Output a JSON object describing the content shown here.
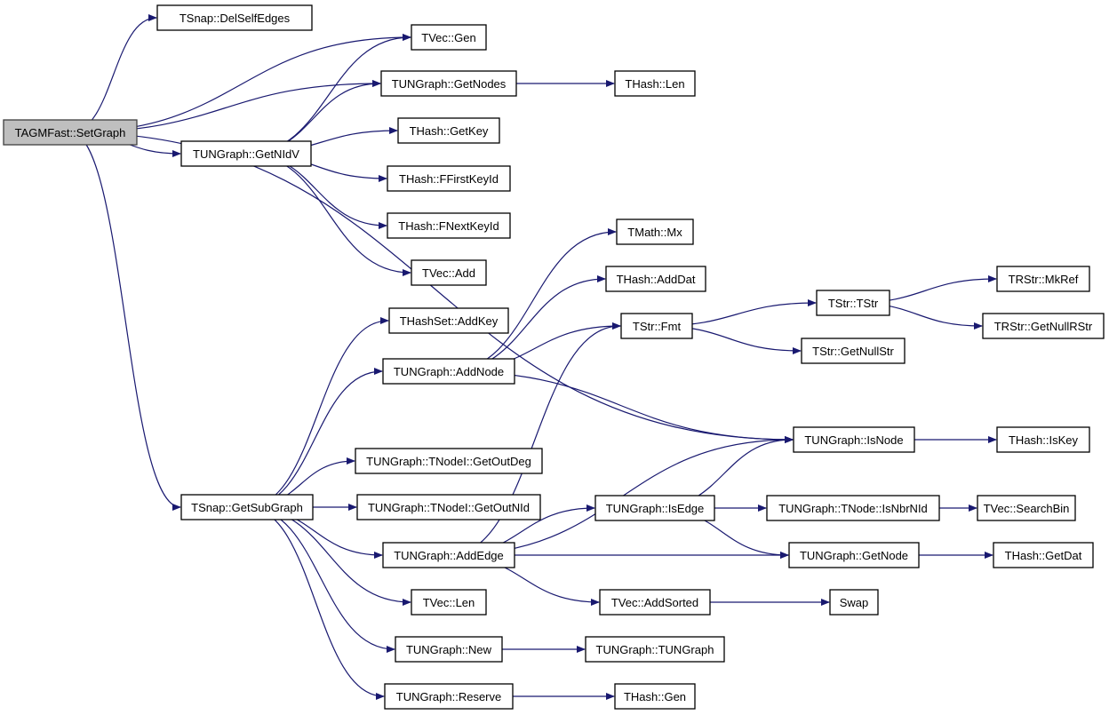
{
  "colors": {
    "edge": "#191970",
    "root_fill": "#bfbfbf",
    "node_fill": "#ffffff"
  },
  "nodes": [
    {
      "id": "setgraph",
      "label": "TAGMFast::SetGraph",
      "root": true
    },
    {
      "id": "delselfedges",
      "label": "TSnap::DelSelfEdges"
    },
    {
      "id": "tvecgen",
      "label": "TVec::Gen"
    },
    {
      "id": "getnodes",
      "label": "TUNGraph::GetNodes"
    },
    {
      "id": "thashlen",
      "label": "THash::Len"
    },
    {
      "id": "getnidv",
      "label": "TUNGraph::GetNIdV"
    },
    {
      "id": "getkey",
      "label": "THash::GetKey"
    },
    {
      "id": "ffirstkeyid",
      "label": "THash::FFirstKeyId"
    },
    {
      "id": "fnextkeyid",
      "label": "THash::FNextKeyId"
    },
    {
      "id": "tvecadd",
      "label": "TVec::Add"
    },
    {
      "id": "mx",
      "label": "TMath::Mx"
    },
    {
      "id": "adddat",
      "label": "THash::AddDat"
    },
    {
      "id": "addkey",
      "label": "THashSet::AddKey"
    },
    {
      "id": "fmt",
      "label": "TStr::Fmt"
    },
    {
      "id": "tstr",
      "label": "TStr::TStr"
    },
    {
      "id": "mkref",
      "label": "TRStr::MkRef"
    },
    {
      "id": "getnullrstr",
      "label": "TRStr::GetNullRStr"
    },
    {
      "id": "addnode",
      "label": "TUNGraph::AddNode"
    },
    {
      "id": "getnullstr",
      "label": "TStr::GetNullStr"
    },
    {
      "id": "isnode",
      "label": "TUNGraph::IsNode"
    },
    {
      "id": "iskey",
      "label": "THash::IsKey"
    },
    {
      "id": "getoutdeg",
      "label": "TUNGraph::TNodeI::GetOutDeg"
    },
    {
      "id": "getsubgraph",
      "label": "TSnap::GetSubGraph"
    },
    {
      "id": "getoutnid",
      "label": "TUNGraph::TNodeI::GetOutNId"
    },
    {
      "id": "isedge",
      "label": "TUNGraph::IsEdge"
    },
    {
      "id": "isnbrnid",
      "label": "TUNGraph::TNode::IsNbrNId"
    },
    {
      "id": "searchbin",
      "label": "TVec::SearchBin"
    },
    {
      "id": "addedge",
      "label": "TUNGraph::AddEdge"
    },
    {
      "id": "getnode",
      "label": "TUNGraph::GetNode"
    },
    {
      "id": "getdat",
      "label": "THash::GetDat"
    },
    {
      "id": "tveclen",
      "label": "TVec::Len"
    },
    {
      "id": "addsorted",
      "label": "TVec::AddSorted"
    },
    {
      "id": "swap",
      "label": "Swap"
    },
    {
      "id": "new",
      "label": "TUNGraph::New"
    },
    {
      "id": "tungraph",
      "label": "TUNGraph::TUNGraph"
    },
    {
      "id": "reserve",
      "label": "TUNGraph::Reserve"
    },
    {
      "id": "thashgen",
      "label": "THash::Gen"
    }
  ],
  "edges": [
    [
      "setgraph",
      "delselfedges"
    ],
    [
      "setgraph",
      "tvecgen"
    ],
    [
      "setgraph",
      "getnodes"
    ],
    [
      "setgraph",
      "getnidv"
    ],
    [
      "setgraph",
      "isnode"
    ],
    [
      "setgraph",
      "getsubgraph"
    ],
    [
      "getnidv",
      "tvecgen"
    ],
    [
      "getnidv",
      "getnodes"
    ],
    [
      "getnidv",
      "getkey"
    ],
    [
      "getnidv",
      "ffirstkeyid"
    ],
    [
      "getnidv",
      "fnextkeyid"
    ],
    [
      "getnidv",
      "tvecadd"
    ],
    [
      "getnodes",
      "thashlen"
    ],
    [
      "getsubgraph",
      "addkey"
    ],
    [
      "getsubgraph",
      "addnode"
    ],
    [
      "getsubgraph",
      "getoutdeg"
    ],
    [
      "getsubgraph",
      "getoutnid"
    ],
    [
      "getsubgraph",
      "addedge"
    ],
    [
      "getsubgraph",
      "tveclen"
    ],
    [
      "getsubgraph",
      "new"
    ],
    [
      "getsubgraph",
      "reserve"
    ],
    [
      "addnode",
      "mx"
    ],
    [
      "addnode",
      "adddat"
    ],
    [
      "addnode",
      "fmt"
    ],
    [
      "addnode",
      "isnode"
    ],
    [
      "fmt",
      "tstr"
    ],
    [
      "fmt",
      "getnullstr"
    ],
    [
      "tstr",
      "mkref"
    ],
    [
      "tstr",
      "getnullrstr"
    ],
    [
      "isnode",
      "iskey"
    ],
    [
      "addedge",
      "fmt"
    ],
    [
      "addedge",
      "isnode"
    ],
    [
      "addedge",
      "isedge"
    ],
    [
      "addedge",
      "getnode"
    ],
    [
      "addedge",
      "addsorted"
    ],
    [
      "isedge",
      "isnode"
    ],
    [
      "isedge",
      "isnbrnid"
    ],
    [
      "isedge",
      "getnode"
    ],
    [
      "isnbrnid",
      "searchbin"
    ],
    [
      "getnode",
      "getdat"
    ],
    [
      "addsorted",
      "swap"
    ],
    [
      "new",
      "tungraph"
    ],
    [
      "reserve",
      "thashgen"
    ]
  ]
}
